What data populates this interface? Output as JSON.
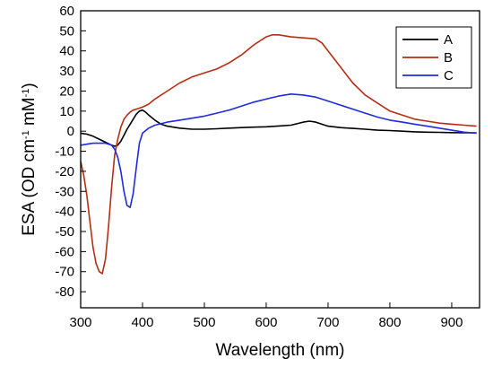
{
  "chart_data": {
    "type": "line",
    "title": "",
    "xlabel": "Wavelength (nm)",
    "ylabel": "ESA (OD cm^-1 mM^-1)",
    "ylabel_parts": {
      "main": "ESA (OD cm",
      "exp1": "-1",
      "mid": " mM",
      "exp2": "-1",
      "end": ")"
    },
    "xlim": [
      300,
      945
    ],
    "ylim": [
      -88,
      60
    ],
    "x_ticks": [
      300,
      400,
      500,
      600,
      700,
      800,
      900
    ],
    "y_ticks": [
      60,
      50,
      40,
      30,
      20,
      10,
      0,
      -10,
      -20,
      -30,
      -40,
      -50,
      -60,
      -70,
      -80
    ],
    "grid": false,
    "legend_position": "top-right",
    "series": [
      {
        "name": "A",
        "color": "#000000",
        "x": [
          300,
          310,
          320,
          330,
          340,
          350,
          355,
          360,
          365,
          370,
          375,
          380,
          385,
          390,
          395,
          400,
          405,
          410,
          420,
          430,
          440,
          450,
          460,
          480,
          500,
          520,
          540,
          560,
          580,
          600,
          620,
          640,
          660,
          670,
          680,
          690,
          700,
          720,
          740,
          760,
          780,
          800,
          820,
          840,
          860,
          880,
          900,
          920,
          940
        ],
        "y": [
          -1,
          -1.5,
          -2.5,
          -4,
          -5.5,
          -7,
          -7.5,
          -7,
          -5,
          -2,
          1,
          3.5,
          6,
          8.5,
          10,
          10.5,
          9.5,
          8,
          5.5,
          3.5,
          2.5,
          2,
          1.5,
          1,
          1,
          1.2,
          1.5,
          1.8,
          2,
          2.2,
          2.6,
          3,
          4.5,
          5,
          4.5,
          3.5,
          2.5,
          1.8,
          1.4,
          1,
          0.5,
          0.3,
          0,
          -0.3,
          -0.5,
          -0.6,
          -0.7,
          -0.8,
          -0.8
        ]
      },
      {
        "name": "B",
        "color": "#b52e14",
        "x": [
          300,
          305,
          310,
          315,
          320,
          325,
          330,
          335,
          340,
          345,
          350,
          355,
          360,
          365,
          370,
          375,
          380,
          385,
          390,
          400,
          410,
          420,
          440,
          460,
          480,
          500,
          520,
          540,
          560,
          580,
          600,
          610,
          620,
          640,
          660,
          680,
          690,
          700,
          720,
          740,
          760,
          780,
          800,
          820,
          840,
          860,
          880,
          900,
          920,
          940
        ],
        "y": [
          -15,
          -22,
          -32,
          -45,
          -58,
          -66,
          -70,
          -71,
          -64,
          -48,
          -28,
          -12,
          -4,
          2,
          6,
          8,
          9.5,
          10.5,
          11,
          12,
          13.5,
          16,
          20,
          24,
          27,
          29,
          31,
          34,
          38,
          43,
          47,
          48,
          48,
          47,
          46.5,
          46,
          44,
          40,
          32,
          24,
          18,
          14,
          10,
          8,
          6,
          5,
          4,
          3.5,
          3,
          2.5
        ]
      },
      {
        "name": "C",
        "color": "#1f2be0",
        "x": [
          300,
          310,
          320,
          330,
          340,
          350,
          355,
          360,
          365,
          370,
          375,
          380,
          385,
          390,
          395,
          400,
          410,
          420,
          440,
          460,
          480,
          500,
          520,
          540,
          560,
          580,
          600,
          620,
          640,
          660,
          680,
          700,
          720,
          740,
          760,
          780,
          800,
          820,
          840,
          860,
          880,
          900,
          920,
          940
        ],
        "y": [
          -7,
          -6.5,
          -6,
          -6,
          -6,
          -7,
          -9,
          -13,
          -20,
          -30,
          -37,
          -38,
          -31,
          -18,
          -6,
          -1,
          1.5,
          3,
          4.5,
          5.5,
          6.5,
          7.5,
          9,
          10.5,
          12.5,
          14.5,
          16,
          17.5,
          18.5,
          18,
          17,
          15,
          13,
          11,
          9,
          7,
          5.5,
          4.5,
          3.5,
          2.5,
          1.5,
          0.5,
          -0.5,
          -1
        ]
      }
    ]
  }
}
